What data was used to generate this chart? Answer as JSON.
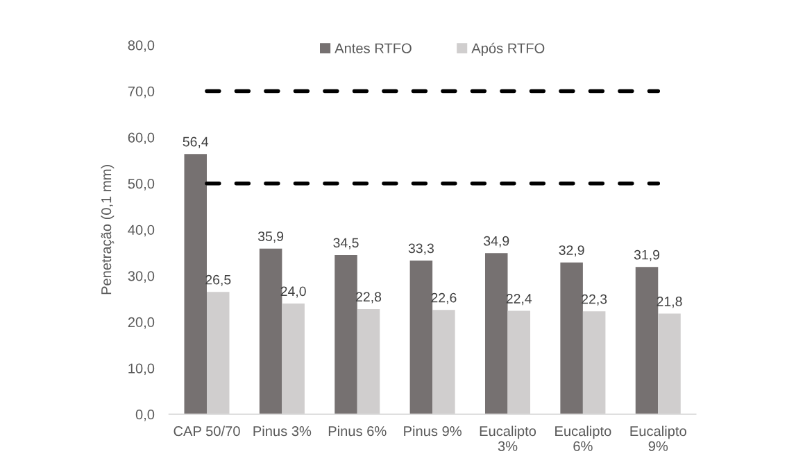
{
  "chart_data": {
    "type": "bar",
    "ylabel": "Penetração (0,1 mm)",
    "categories": [
      "CAP 50/70",
      "Pinus 3%",
      "Pinus 6%",
      "Pinus 9%",
      "Eucalipto 3%",
      "Eucalipto 6%",
      "Eucalipto 9%"
    ],
    "series": [
      {
        "name": "Antes RTFO",
        "color": "#767171",
        "values": [
          56.4,
          35.9,
          34.5,
          33.3,
          34.9,
          32.9,
          31.9
        ],
        "value_labels": [
          "56,4",
          "35,9",
          "34,5",
          "33,3",
          "34,9",
          "32,9",
          "31,9"
        ]
      },
      {
        "name": "Após RTFO",
        "color": "#d0cece",
        "values": [
          26.5,
          24.0,
          22.8,
          22.6,
          22.4,
          22.3,
          21.8
        ],
        "value_labels": [
          "26,5",
          "24,0",
          "22,8",
          "22,6",
          "22,4",
          "22,3",
          "21,8"
        ]
      }
    ],
    "ylim": [
      0,
      80
    ],
    "yticks": [
      {
        "value": 0,
        "label": "0,0"
      },
      {
        "value": 10,
        "label": "10,0"
      },
      {
        "value": 20,
        "label": "20,0"
      },
      {
        "value": 30,
        "label": "30,0"
      },
      {
        "value": 40,
        "label": "40,0"
      },
      {
        "value": 50,
        "label": "50,0"
      },
      {
        "value": 60,
        "label": "60,0"
      },
      {
        "value": 70,
        "label": "70,0"
      },
      {
        "value": 80,
        "label": "80,0"
      }
    ],
    "ref_lines": [
      {
        "axis": "y",
        "value": 70,
        "color": "#000000",
        "line_style": "dashed"
      },
      {
        "axis": "y",
        "value": 50,
        "color": "#000000",
        "line_style": "dashed"
      }
    ],
    "legend": "top",
    "grid": false
  }
}
